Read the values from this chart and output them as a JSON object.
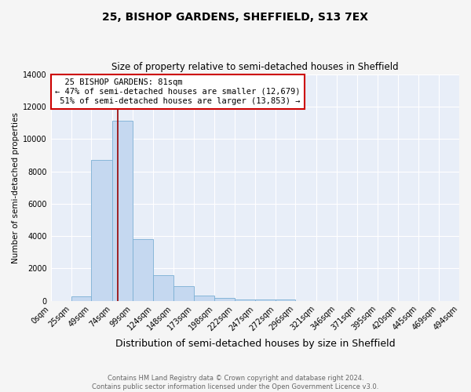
{
  "title": "25, BISHOP GARDENS, SHEFFIELD, S13 7EX",
  "subtitle": "Size of property relative to semi-detached houses in Sheffield",
  "xlabel": "Distribution of semi-detached houses by size in Sheffield",
  "ylabel": "Number of semi-detached properties",
  "bin_labels": [
    "0sqm",
    "25sqm",
    "49sqm",
    "74sqm",
    "99sqm",
    "124sqm",
    "148sqm",
    "173sqm",
    "198sqm",
    "222sqm",
    "247sqm",
    "272sqm",
    "296sqm",
    "321sqm",
    "346sqm",
    "371sqm",
    "395sqm",
    "420sqm",
    "445sqm",
    "469sqm",
    "494sqm"
  ],
  "bar_heights": [
    0,
    300,
    8700,
    11100,
    3800,
    1600,
    900,
    350,
    200,
    100,
    100,
    110,
    0,
    0,
    0,
    0,
    0,
    0,
    0,
    0
  ],
  "bar_color": "#c5d8f0",
  "bar_edge_color": "#7bafd4",
  "property_value": 81,
  "property_label": "25 BISHOP GARDENS: 81sqm",
  "pct_smaller": 47,
  "n_smaller": 12679,
  "pct_larger": 51,
  "n_larger": 13853,
  "red_line_color": "#990000",
  "annotation_box_color": "#cc0000",
  "ylim": [
    0,
    14000
  ],
  "yticks": [
    0,
    2000,
    4000,
    6000,
    8000,
    10000,
    12000,
    14000
  ],
  "bin_starts": [
    0,
    25,
    49,
    74,
    99,
    124,
    148,
    173,
    198,
    222,
    247,
    272,
    296,
    321,
    346,
    371,
    395,
    420,
    445,
    469
  ],
  "footer_line1": "Contains HM Land Registry data © Crown copyright and database right 2024.",
  "footer_line2": "Contains public sector information licensed under the Open Government Licence v3.0.",
  "plot_bg_color": "#e8eef8",
  "fig_bg_color": "#f5f5f5",
  "grid_color": "#ffffff",
  "title_fontsize": 10,
  "subtitle_fontsize": 8.5,
  "xlabel_fontsize": 9,
  "ylabel_fontsize": 7.5,
  "tick_fontsize": 7,
  "annot_fontsize": 7.5
}
